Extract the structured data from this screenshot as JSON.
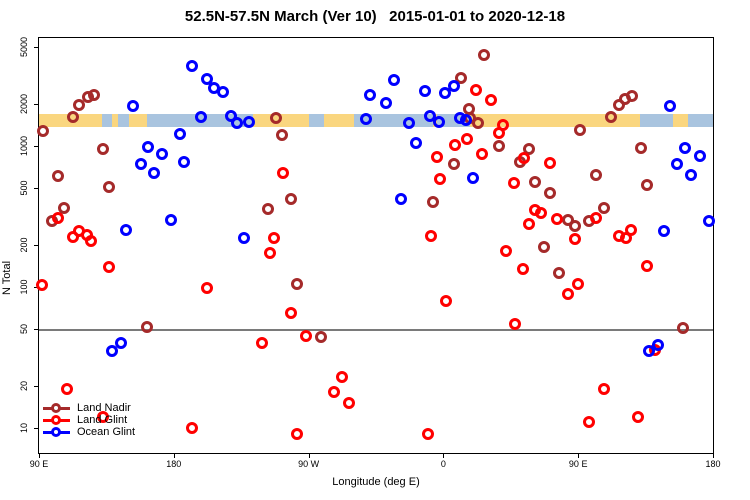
{
  "title": "52.5N-57.5N March (Ver 10)   2015-01-01 to 2020-12-18",
  "chart_data": {
    "type": "scatter",
    "title": "52.5N-57.5N March (Ver 10)   2015-01-01 to 2020-12-18",
    "xlabel": "Longitude (deg E)",
    "ylabel": "N Total",
    "x_axis": {
      "note": "longitude axis spans 450 degrees eastward starting at 90E",
      "span_deg": 450,
      "ticks": [
        {
          "offset": 0,
          "label": "90 E"
        },
        {
          "offset": 90,
          "label": "180"
        },
        {
          "offset": 180,
          "label": "90 W"
        },
        {
          "offset": 270,
          "label": "0"
        },
        {
          "offset": 360,
          "label": "90 E"
        },
        {
          "offset": 450,
          "label": "180"
        }
      ]
    },
    "y_axis": {
      "scale": "log",
      "range": [
        7,
        5800
      ],
      "ticks": [
        {
          "value": 10,
          "label": "10"
        },
        {
          "value": 20,
          "label": "20"
        },
        {
          "value": 50,
          "label": "50"
        },
        {
          "value": 100,
          "label": "100"
        },
        {
          "value": 200,
          "label": "200"
        },
        {
          "value": 500,
          "label": "500"
        },
        {
          "value": 1000,
          "label": "1000"
        },
        {
          "value": 2000,
          "label": "2000"
        },
        {
          "value": 5000,
          "label": "5000"
        }
      ]
    },
    "hline": {
      "value": 50,
      "color": "#7a7a7a"
    },
    "map_strip": {
      "value_top": 1690,
      "value_bottom": 1365,
      "land_color": "#FAD67F",
      "ocean_color": "#A9C4DF",
      "segments": [
        {
          "type": "land",
          "from": 0,
          "to": 42
        },
        {
          "type": "ocean",
          "from": 42,
          "to": 49
        },
        {
          "type": "land",
          "from": 49,
          "to": 53
        },
        {
          "type": "ocean",
          "from": 53,
          "to": 60
        },
        {
          "type": "land",
          "from": 60,
          "to": 72
        },
        {
          "type": "ocean",
          "from": 72,
          "to": 143
        },
        {
          "type": "land",
          "from": 143,
          "to": 180
        },
        {
          "type": "ocean",
          "from": 180,
          "to": 190
        },
        {
          "type": "land",
          "from": 190,
          "to": 210
        },
        {
          "type": "ocean",
          "from": 210,
          "to": 263
        },
        {
          "type": "land",
          "from": 263,
          "to": 266
        },
        {
          "type": "ocean",
          "from": 266,
          "to": 288
        },
        {
          "type": "land",
          "from": 288,
          "to": 401
        },
        {
          "type": "ocean",
          "from": 401,
          "to": 423
        },
        {
          "type": "land",
          "from": 423,
          "to": 433
        },
        {
          "type": "ocean",
          "from": 433,
          "to": 450
        }
      ]
    },
    "legend": {
      "position": "bottom-left",
      "entries": [
        {
          "label": "Land Nadir",
          "color": "#A52A2A"
        },
        {
          "label": "Land Glint",
          "color": "#FF0000"
        },
        {
          "label": "Ocean Glint",
          "color": "#0000FF"
        }
      ]
    },
    "series": [
      {
        "name": "Land Nadir",
        "color": "#A52A2A",
        "points": [
          [
            3,
            1280
          ],
          [
            9,
            295
          ],
          [
            13,
            610
          ],
          [
            17,
            365
          ],
          [
            23,
            1600
          ],
          [
            27,
            1950
          ],
          [
            33,
            2230
          ],
          [
            37,
            2300
          ],
          [
            43,
            950
          ],
          [
            47,
            510
          ],
          [
            72,
            52
          ],
          [
            153,
            357
          ],
          [
            158,
            1580
          ],
          [
            162,
            1200
          ],
          [
            168,
            420
          ],
          [
            172,
            105
          ],
          [
            188,
            44
          ],
          [
            263,
            401
          ],
          [
            277,
            745
          ],
          [
            282,
            3030
          ],
          [
            287,
            1830
          ],
          [
            288,
            1580
          ],
          [
            293,
            1460
          ],
          [
            297,
            4420
          ],
          [
            307,
            1000
          ],
          [
            321,
            771
          ],
          [
            327,
            953
          ],
          [
            331,
            555
          ],
          [
            337,
            192
          ],
          [
            341,
            464
          ],
          [
            347,
            126
          ],
          [
            353,
            299
          ],
          [
            358,
            271
          ],
          [
            361,
            1300
          ],
          [
            367,
            294
          ],
          [
            372,
            623
          ],
          [
            377,
            363
          ],
          [
            382,
            1610
          ],
          [
            387,
            1950
          ],
          [
            391,
            2150
          ],
          [
            396,
            2270
          ],
          [
            402,
            968
          ],
          [
            406,
            529
          ],
          [
            430,
            51
          ]
        ]
      },
      {
        "name": "Land Glint",
        "color": "#FF0000",
        "points": [
          [
            2,
            103
          ],
          [
            13,
            311
          ],
          [
            19,
            19
          ],
          [
            23,
            226
          ],
          [
            27,
            250
          ],
          [
            32,
            234
          ],
          [
            35,
            212
          ],
          [
            43,
            12
          ],
          [
            47,
            139
          ],
          [
            102,
            10
          ],
          [
            112,
            98
          ],
          [
            149,
            40
          ],
          [
            154,
            174
          ],
          [
            157,
            223
          ],
          [
            163,
            644
          ],
          [
            168,
            65
          ],
          [
            172,
            9
          ],
          [
            178,
            45
          ],
          [
            197,
            18
          ],
          [
            202,
            23
          ],
          [
            207,
            15
          ],
          [
            260,
            9
          ],
          [
            262,
            230
          ],
          [
            266,
            836
          ],
          [
            268,
            583
          ],
          [
            272,
            80
          ],
          [
            278,
            1020
          ],
          [
            286,
            1120
          ],
          [
            292,
            2500
          ],
          [
            296,
            877
          ],
          [
            302,
            2120
          ],
          [
            307,
            1240
          ],
          [
            310,
            1410
          ],
          [
            312,
            180
          ],
          [
            317,
            547
          ],
          [
            318,
            55
          ],
          [
            323,
            134
          ],
          [
            324,
            822
          ],
          [
            327,
            280
          ],
          [
            331,
            352
          ],
          [
            335,
            335
          ],
          [
            341,
            757
          ],
          [
            346,
            304
          ],
          [
            353,
            89
          ],
          [
            358,
            219
          ],
          [
            360,
            105
          ],
          [
            367,
            11
          ],
          [
            372,
            308
          ],
          [
            377,
            19
          ],
          [
            387,
            230
          ],
          [
            392,
            223
          ],
          [
            395,
            254
          ],
          [
            400,
            12
          ],
          [
            406,
            141
          ],
          [
            411,
            36
          ]
        ]
      },
      {
        "name": "Ocean Glint",
        "color": "#0000FF",
        "points": [
          [
            49,
            35
          ],
          [
            55,
            40
          ],
          [
            58,
            254
          ],
          [
            63,
            1920
          ],
          [
            68,
            745
          ],
          [
            73,
            984
          ],
          [
            77,
            644
          ],
          [
            82,
            877
          ],
          [
            88,
            299
          ],
          [
            94,
            1220
          ],
          [
            97,
            771
          ],
          [
            102,
            3690
          ],
          [
            108,
            1610
          ],
          [
            112,
            2990
          ],
          [
            117,
            2580
          ],
          [
            123,
            2420
          ],
          [
            128,
            1630
          ],
          [
            132,
            1460
          ],
          [
            137,
            223
          ],
          [
            140,
            1480
          ],
          [
            218,
            1550
          ],
          [
            221,
            2300
          ],
          [
            232,
            2020
          ],
          [
            237,
            2940
          ],
          [
            242,
            421
          ],
          [
            247,
            1460
          ],
          [
            252,
            1050
          ],
          [
            258,
            2460
          ],
          [
            261,
            1630
          ],
          [
            267,
            1480
          ],
          [
            271,
            2380
          ],
          [
            277,
            2670
          ],
          [
            281,
            1580
          ],
          [
            285,
            1530
          ],
          [
            290,
            593
          ],
          [
            407,
            35
          ],
          [
            413,
            39
          ],
          [
            417,
            250
          ],
          [
            421,
            1920
          ],
          [
            426,
            745
          ],
          [
            431,
            968
          ],
          [
            435,
            626
          ],
          [
            441,
            850
          ],
          [
            447,
            294
          ]
        ]
      }
    ]
  }
}
